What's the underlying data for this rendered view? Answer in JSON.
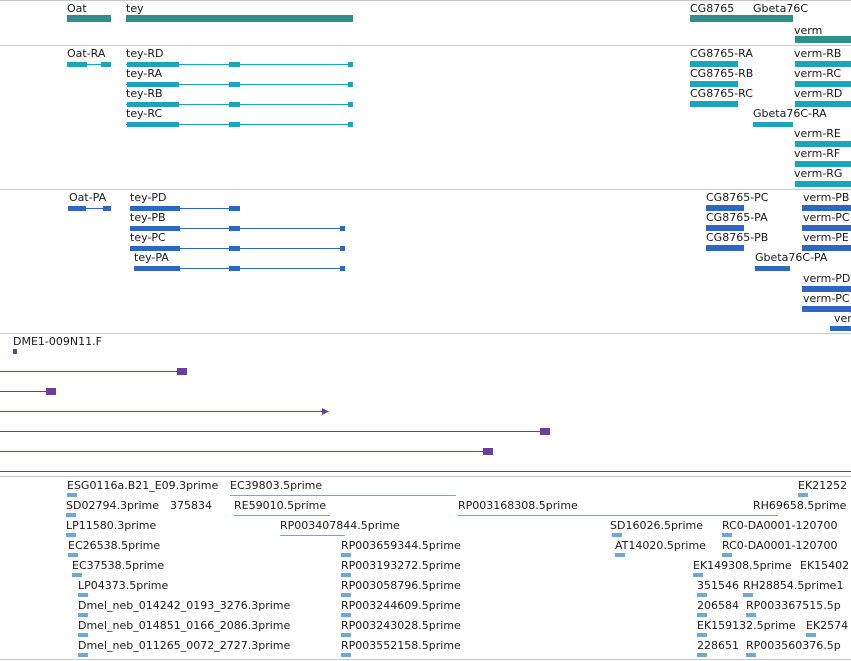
{
  "colors": {
    "gene": "#2f8f8a",
    "transcript": "#1aa6b8",
    "protein": "#2f66c4",
    "clone": "#6a3fa0",
    "est": "#6ea8d6",
    "separator": "#c8c8c8"
  },
  "tracks": {
    "genes": {
      "items": [
        {
          "label": "Oat"
        },
        {
          "label": "tey"
        },
        {
          "label": "CG8765"
        },
        {
          "label": "Gbeta76C"
        },
        {
          "label": "verm"
        }
      ]
    },
    "transcripts": {
      "items": [
        {
          "label": "Oat-RA"
        },
        {
          "label": "tey-RD"
        },
        {
          "label": "tey-RA"
        },
        {
          "label": "tey-RB"
        },
        {
          "label": "tey-RC"
        },
        {
          "label": "CG8765-RA"
        },
        {
          "label": "CG8765-RB"
        },
        {
          "label": "CG8765-RC"
        },
        {
          "label": "verm-RB"
        },
        {
          "label": "verm-RC"
        },
        {
          "label": "verm-RD"
        },
        {
          "label": "Gbeta76C-RA"
        },
        {
          "label": "verm-RE"
        },
        {
          "label": "verm-RF"
        },
        {
          "label": "verm-RG"
        }
      ]
    },
    "proteins": {
      "items": [
        {
          "label": "Oat-PA"
        },
        {
          "label": "tey-PD"
        },
        {
          "label": "tey-PB"
        },
        {
          "label": "tey-PC"
        },
        {
          "label": "tey-PA"
        },
        {
          "label": "CG8765-PC"
        },
        {
          "label": "CG8765-PA"
        },
        {
          "label": "CG8765-PB"
        },
        {
          "label": "Gbeta76C-PA"
        },
        {
          "label": "verm-PB"
        },
        {
          "label": "verm-PC"
        },
        {
          "label": "verm-PE"
        },
        {
          "label": "verm-PD"
        },
        {
          "label": "verm-PC"
        },
        {
          "label": "verm"
        }
      ]
    },
    "clones": {
      "items": [
        {
          "label": "DME1-009N11.F"
        }
      ]
    },
    "ests": {
      "items": [
        {
          "label": "ESG0116a.B21_E09.3prime"
        },
        {
          "label": "EC39803.5prime"
        },
        {
          "label": "EK21252"
        },
        {
          "label": "SD02794.3prime"
        },
        {
          "label": "375834"
        },
        {
          "label": "RE59010.5prime"
        },
        {
          "label": "RP003168308.5prime"
        },
        {
          "label": "RH69658.5prime"
        },
        {
          "label": "LP11580.3prime"
        },
        {
          "label": "RP003407844.5prime"
        },
        {
          "label": "SD16026.5prime"
        },
        {
          "label": "RC0-DA0001-120700"
        },
        {
          "label": "EC26538.5prime"
        },
        {
          "label": "RP003659344.5prime"
        },
        {
          "label": "AT14020.5prime"
        },
        {
          "label": "RC0-DA0001-120700"
        },
        {
          "label": "EC37538.5prime"
        },
        {
          "label": "RP003193272.5prime"
        },
        {
          "label": "EK149308.5prime"
        },
        {
          "label": "LP04373.5prime"
        },
        {
          "label": "RP003058796.5prime"
        },
        {
          "label": "351546"
        },
        {
          "label": "RH28854.5prime1"
        },
        {
          "label": "Dmel_neb_014242_0193_3276.3prime"
        },
        {
          "label": "RP003244609.5prime"
        },
        {
          "label": "206584"
        },
        {
          "label": "RP003367515.5p"
        },
        {
          "label": "Dmel_neb_014851_0166_2086.3prime"
        },
        {
          "label": "RP003243028.5prime"
        },
        {
          "label": "EK159132.5prime"
        },
        {
          "label": "EK2574"
        },
        {
          "label": "Dmel_neb_011265_0072_2727.3prime"
        },
        {
          "label": "RP003552158.5prime"
        },
        {
          "label": "228651"
        },
        {
          "label": "RP003560376.5p"
        },
        {
          "label": "EK15402"
        }
      ]
    }
  }
}
